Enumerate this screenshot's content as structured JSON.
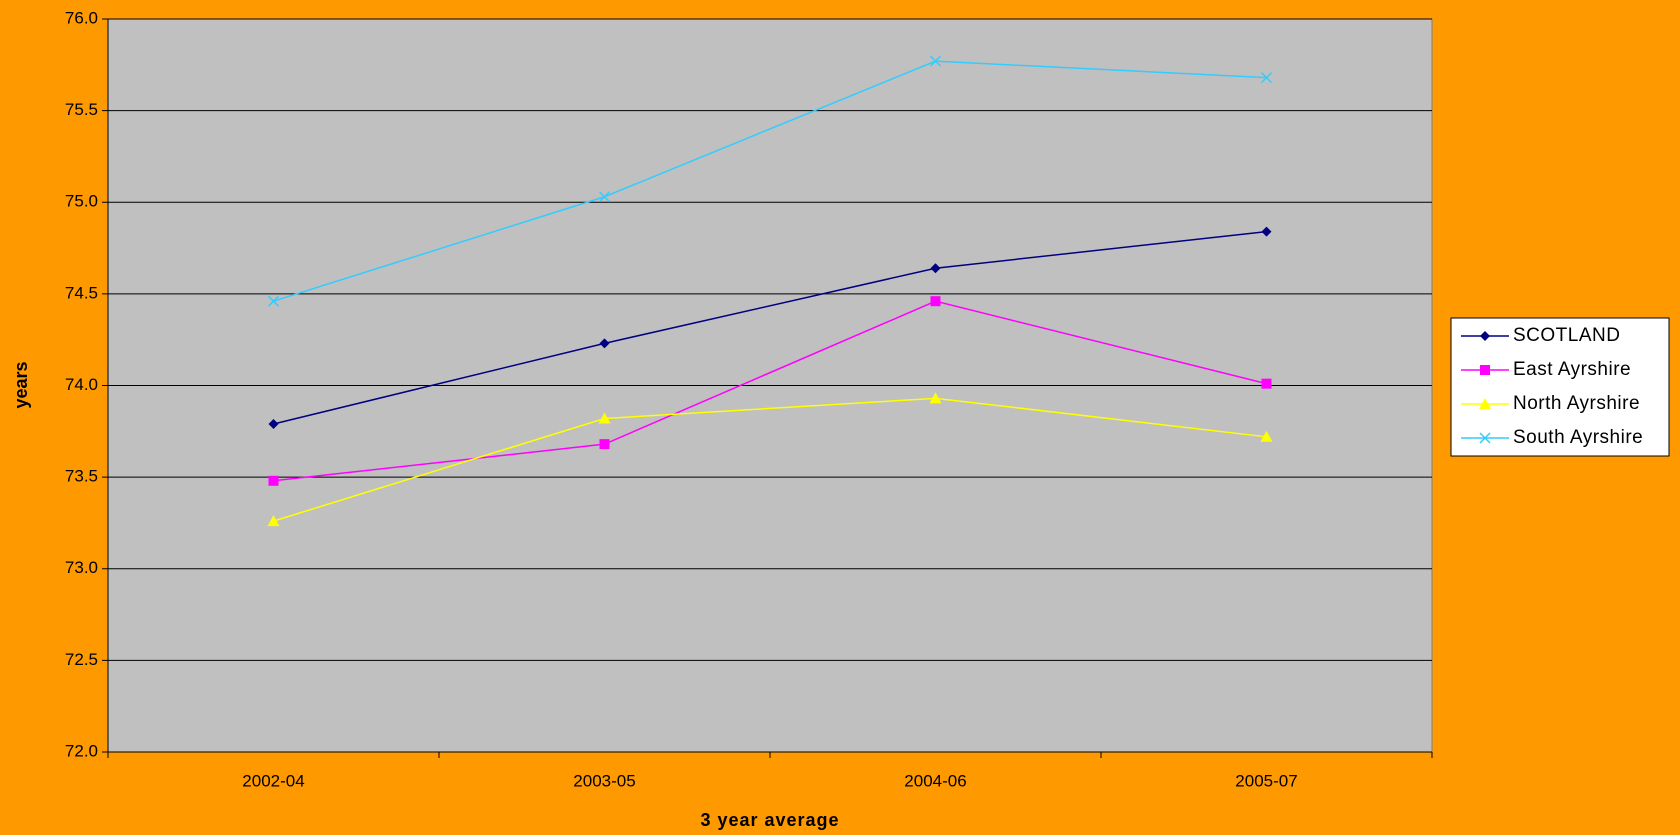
{
  "chart_data": {
    "type": "line",
    "x_label": "3 year average",
    "y_label": "years",
    "categories": [
      "2002-04",
      "2003-05",
      "2004-06",
      "2005-07"
    ],
    "series": [
      {
        "name": "SCOTLAND",
        "color": "#000080",
        "marker": "diamond",
        "values": [
          73.79,
          74.23,
          74.64,
          74.84
        ]
      },
      {
        "name": "East Ayrshire",
        "color": "#ff00ff",
        "marker": "square",
        "values": [
          73.48,
          73.68,
          74.46,
          74.01
        ]
      },
      {
        "name": "North Ayrshire",
        "color": "#ffff00",
        "marker": "triangle",
        "values": [
          73.26,
          73.82,
          73.93,
          73.72
        ]
      },
      {
        "name": "South Ayrshire",
        "color": "#33ccff",
        "marker": "x",
        "values": [
          74.46,
          75.03,
          75.77,
          75.68
        ]
      }
    ],
    "ylim": [
      72,
      76
    ],
    "yticks": [
      {
        "value": 72,
        "label": "72.0"
      },
      {
        "value": 72.5,
        "label": "72.5"
      },
      {
        "value": 73,
        "label": "73.0"
      },
      {
        "value": 73.5,
        "label": "73.5"
      },
      {
        "value": 74,
        "label": "74.0"
      },
      {
        "value": 74.5,
        "label": "74.5"
      },
      {
        "value": 75,
        "label": "75.0"
      },
      {
        "value": 75.5,
        "label": "75.5"
      },
      {
        "value": 76,
        "label": "76.0"
      }
    ],
    "grid": true,
    "legend": "right",
    "plot_background": "#c0c0c0"
  }
}
